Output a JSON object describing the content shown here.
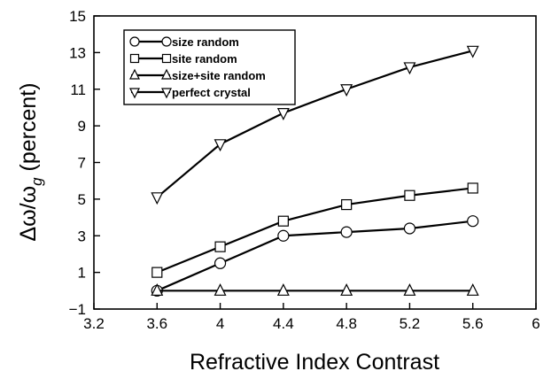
{
  "chart_data": {
    "type": "line",
    "xlabel": "Refractive Index Contrast",
    "ylabel": "Δω/ω",
    "ylabel_subscript": "g",
    "ylabel_suffix": " (percent)",
    "xlim": [
      3.2,
      6.0
    ],
    "ylim": [
      -1,
      15
    ],
    "xticks": [
      "3.2",
      "3.6",
      "4",
      "4.4",
      "4.8",
      "5.2",
      "5.6",
      "6"
    ],
    "yticks": [
      "−1",
      "1",
      "3",
      "5",
      "7",
      "9",
      "11",
      "13",
      "15"
    ],
    "grid": false,
    "legend_position": "top-left",
    "x": [
      3.6,
      4.0,
      4.4,
      4.8,
      5.2,
      5.6
    ],
    "series": [
      {
        "name": "size random",
        "marker": "circle",
        "values": [
          0.0,
          1.5,
          3.0,
          3.2,
          3.4,
          3.8
        ]
      },
      {
        "name": "site random",
        "marker": "square",
        "values": [
          1.0,
          2.4,
          3.8,
          4.7,
          5.2,
          5.6
        ]
      },
      {
        "name": "size+site random",
        "marker": "triangle-up",
        "values": [
          0.0,
          0.0,
          0.0,
          0.0,
          0.0,
          0.0
        ]
      },
      {
        "name": "perfect crystal",
        "marker": "triangle-down",
        "values": [
          5.1,
          8.0,
          9.7,
          11.0,
          12.2,
          13.1
        ]
      }
    ]
  }
}
